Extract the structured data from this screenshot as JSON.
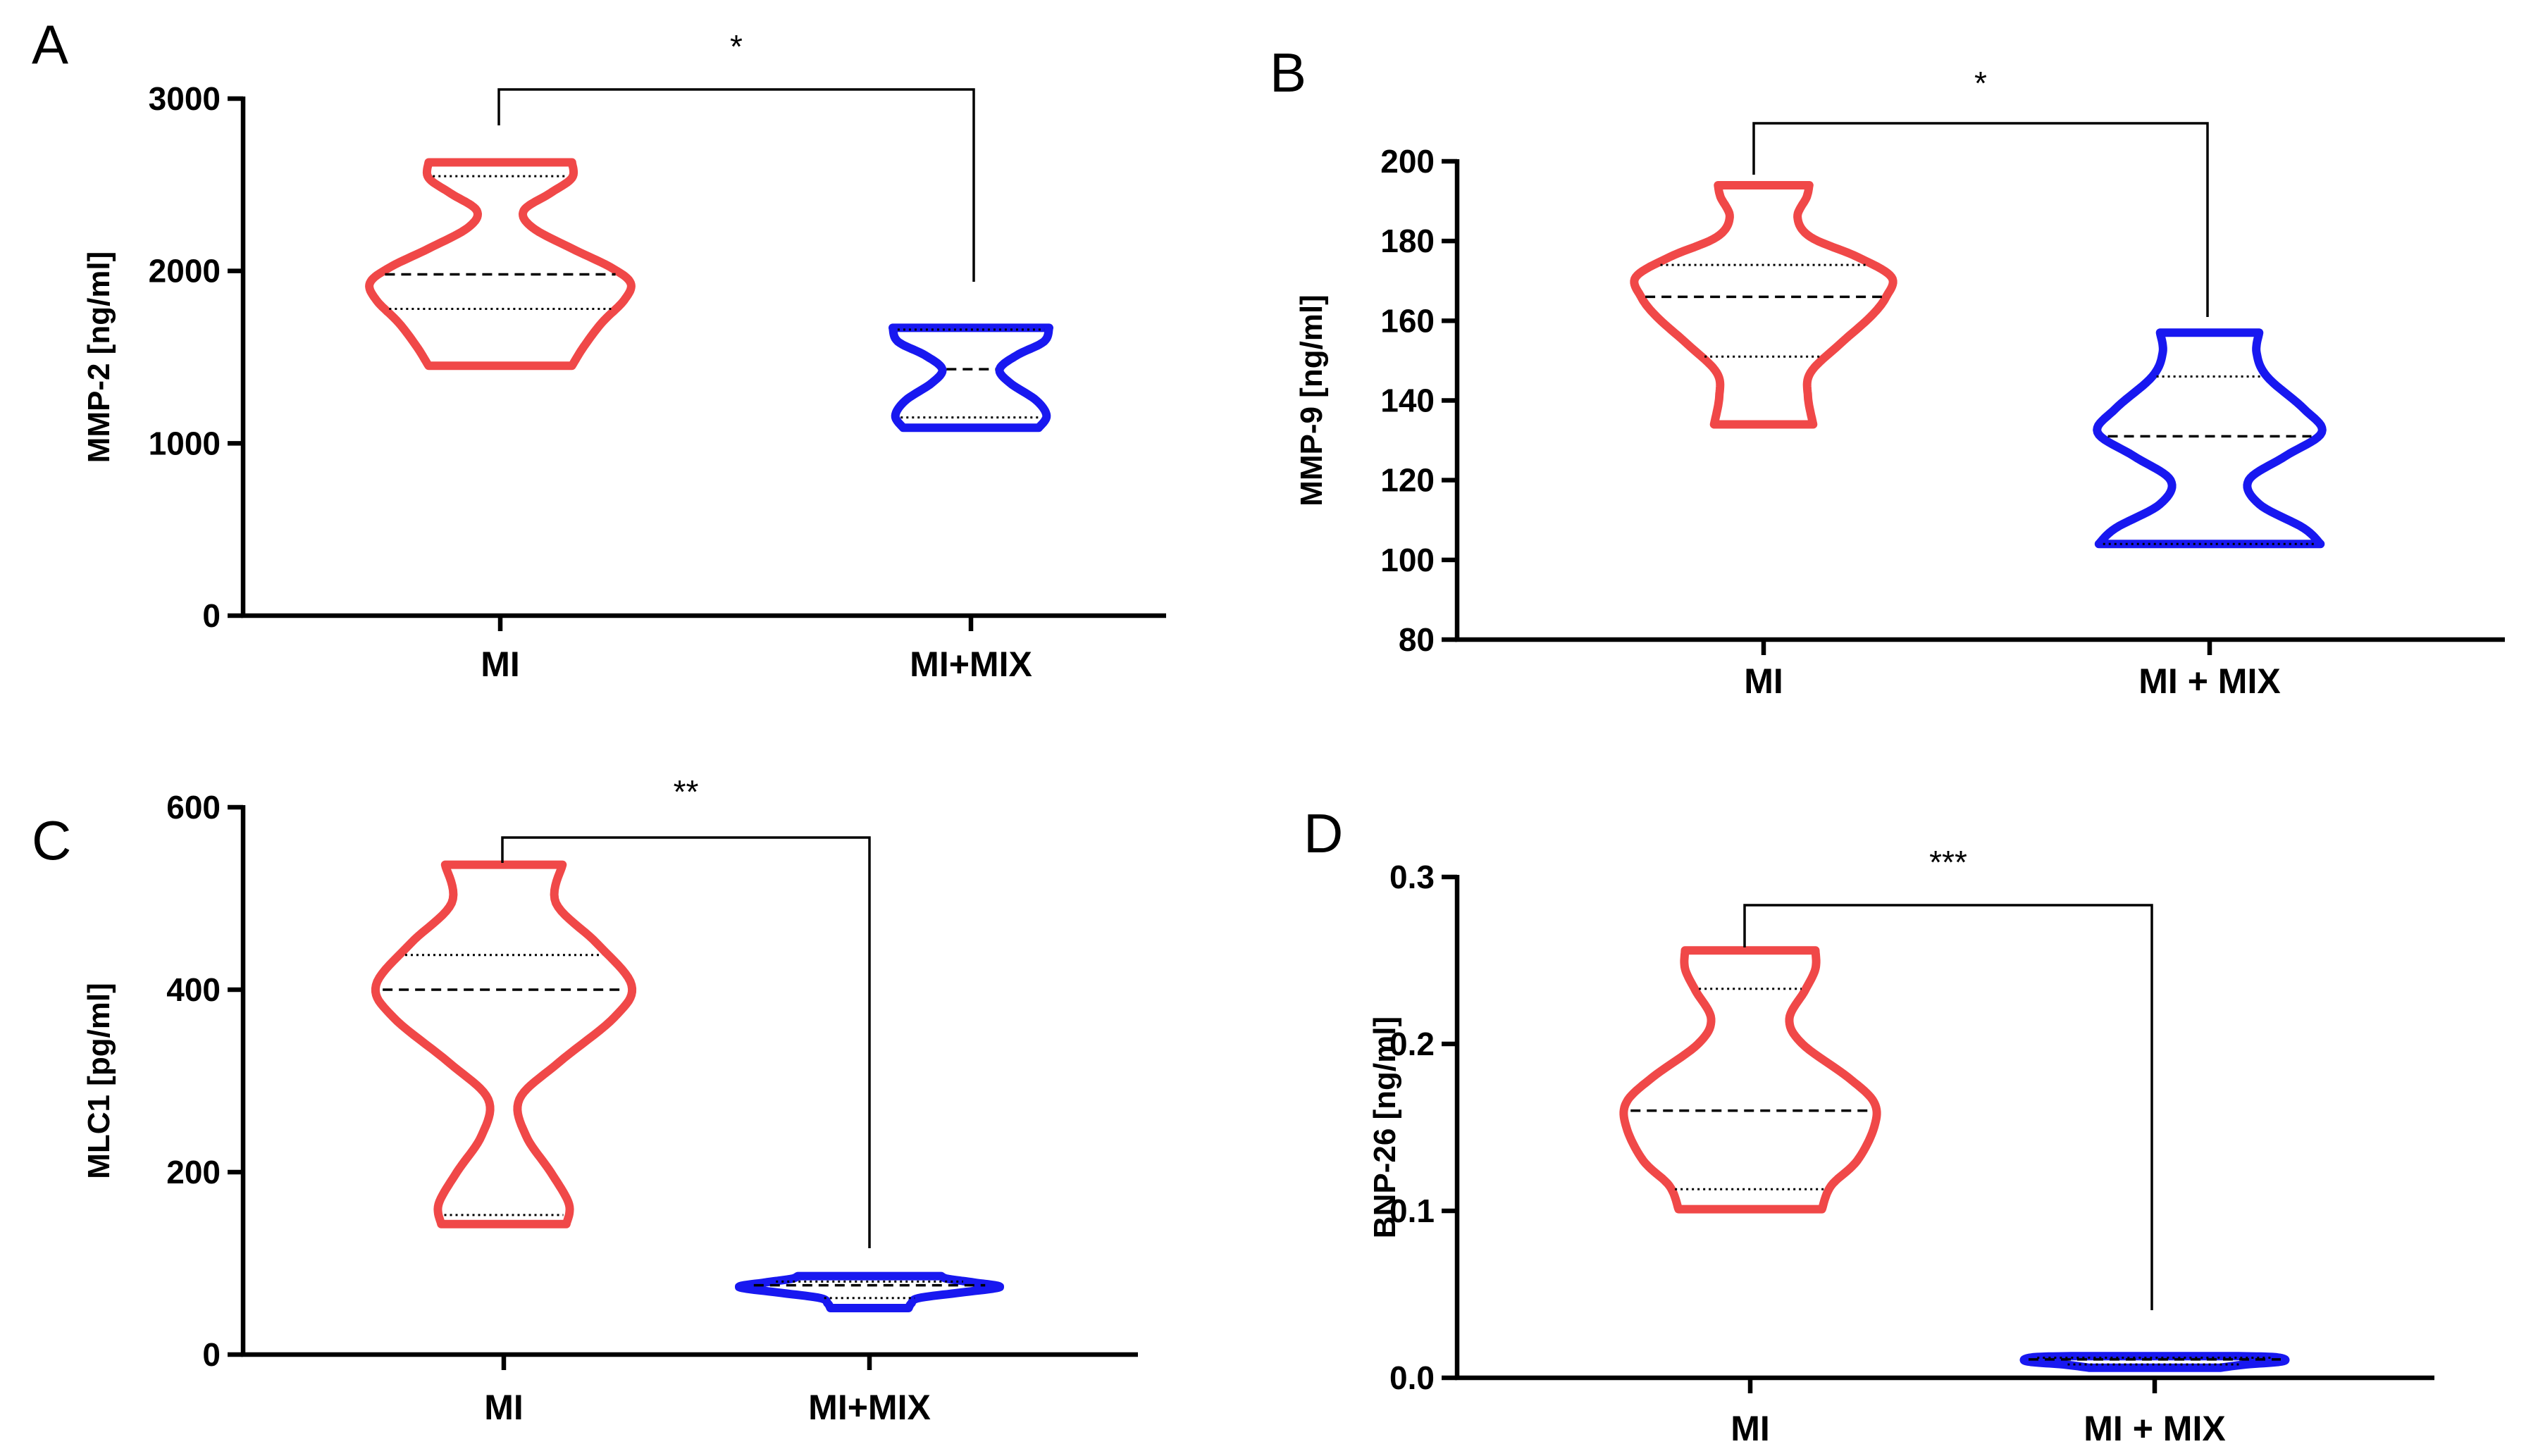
{
  "chart_data": [
    {
      "panel": "A",
      "type": "violin",
      "title": "",
      "xlabel": "",
      "ylabel": "MMP-2 [ng/ml]",
      "ylim": [
        0,
        3000
      ],
      "yticks": [
        0,
        1000,
        2000,
        3000
      ],
      "ytick_labels": [
        "0",
        "1000",
        "2000",
        "3000"
      ],
      "categories": [
        "MI",
        "MI+MIX"
      ],
      "series": [
        {
          "name": "MI",
          "color": "#F04848",
          "min": 1450,
          "max": 2630,
          "median": 1980,
          "q1": 1780,
          "q3": 2550,
          "profile": [
            [
              1450,
              0.55
            ],
            [
              1560,
              0.64
            ],
            [
              1700,
              0.78
            ],
            [
              1830,
              0.95
            ],
            [
              1930,
              1.0
            ],
            [
              2020,
              0.85
            ],
            [
              2130,
              0.55
            ],
            [
              2250,
              0.25
            ],
            [
              2350,
              0.18
            ],
            [
              2450,
              0.38
            ],
            [
              2540,
              0.55
            ],
            [
              2630,
              0.55
            ]
          ]
        },
        {
          "name": "MI+MIX",
          "color": "#1818F0",
          "min": 1090,
          "max": 1670,
          "median": 1430,
          "q1": 1150,
          "q3": 1660,
          "profile": [
            [
              1090,
              0.52
            ],
            [
              1160,
              0.58
            ],
            [
              1250,
              0.5
            ],
            [
              1350,
              0.3
            ],
            [
              1430,
              0.22
            ],
            [
              1510,
              0.35
            ],
            [
              1590,
              0.56
            ],
            [
              1670,
              0.6
            ]
          ]
        }
      ],
      "significance": "*"
    },
    {
      "panel": "B",
      "type": "violin",
      "title": "",
      "xlabel": "",
      "ylabel": "MMP-9 [ng/ml]",
      "ylim": [
        80,
        200
      ],
      "yticks": [
        80,
        100,
        120,
        140,
        160,
        180,
        200
      ],
      "ytick_labels": [
        "80",
        "100",
        "120",
        "140",
        "160",
        "180",
        "200"
      ],
      "categories": [
        "MI",
        "MI + MIX"
      ],
      "series": [
        {
          "name": "MI",
          "color": "#F04848",
          "min": 134,
          "max": 194,
          "median": 166,
          "q1": 151,
          "q3": 174,
          "profile": [
            [
              134,
              0.38
            ],
            [
              141,
              0.34
            ],
            [
              147,
              0.36
            ],
            [
              154,
              0.58
            ],
            [
              161,
              0.82
            ],
            [
              166,
              0.94
            ],
            [
              171,
              0.98
            ],
            [
              176,
              0.72
            ],
            [
              181,
              0.36
            ],
            [
              186,
              0.26
            ],
            [
              191,
              0.33
            ],
            [
              194,
              0.35
            ]
          ]
        },
        {
          "name": "MI + MIX",
          "color": "#1818F0",
          "min": 104,
          "max": 157,
          "median": 131,
          "q1": 104,
          "q3": 146,
          "profile": [
            [
              104,
              0.85
            ],
            [
              108,
              0.72
            ],
            [
              114,
              0.38
            ],
            [
              120,
              0.3
            ],
            [
              126,
              0.58
            ],
            [
              132,
              0.86
            ],
            [
              138,
              0.72
            ],
            [
              146,
              0.44
            ],
            [
              152,
              0.36
            ],
            [
              157,
              0.38
            ]
          ]
        }
      ],
      "significance": "*"
    },
    {
      "panel": "C",
      "type": "violin",
      "title": "",
      "xlabel": "",
      "ylabel": "MLC1 [pg/ml]",
      "ylim": [
        0,
        600
      ],
      "yticks": [
        0,
        200,
        400,
        600
      ],
      "ytick_labels": [
        "0",
        "200",
        "400",
        "600"
      ],
      "categories": [
        "MI",
        "MI+MIX"
      ],
      "series": [
        {
          "name": "MI",
          "color": "#F04848",
          "min": 143,
          "max": 537,
          "median": 400,
          "q1": 153,
          "q3": 438,
          "profile": [
            [
              143,
              0.48
            ],
            [
              165,
              0.5
            ],
            [
              200,
              0.36
            ],
            [
              240,
              0.17
            ],
            [
              280,
              0.12
            ],
            [
              320,
              0.42
            ],
            [
              370,
              0.85
            ],
            [
              405,
              0.98
            ],
            [
              450,
              0.72
            ],
            [
              495,
              0.4
            ],
            [
              537,
              0.45
            ]
          ]
        },
        {
          "name": "MI+MIX",
          "color": "#1818F0",
          "min": 51,
          "max": 86,
          "median": 76,
          "q1": 62,
          "q3": 80,
          "profile": [
            [
              51,
              0.3
            ],
            [
              56,
              0.32
            ],
            [
              62,
              0.38
            ],
            [
              68,
              0.7
            ],
            [
              74,
              1.0
            ],
            [
              79,
              0.8
            ],
            [
              83,
              0.6
            ],
            [
              86,
              0.55
            ]
          ]
        }
      ],
      "significance": "**"
    },
    {
      "panel": "D",
      "type": "violin",
      "title": "",
      "xlabel": "",
      "ylabel": "BNP-26 [ng/ml]",
      "ylim": [
        0,
        0.3
      ],
      "yticks": [
        0,
        0.1,
        0.2,
        0.3
      ],
      "ytick_labels": [
        "0.0",
        "0.1",
        "0.2",
        "0.3"
      ],
      "categories": [
        "MI",
        "MI + MIX"
      ],
      "series": [
        {
          "name": "MI",
          "color": "#F04848",
          "min": 0.101,
          "max": 0.256,
          "median": 0.16,
          "q1": 0.113,
          "q3": 0.233,
          "profile": [
            [
              0.101,
              0.55
            ],
            [
              0.115,
              0.62
            ],
            [
              0.13,
              0.82
            ],
            [
              0.15,
              0.95
            ],
            [
              0.165,
              0.95
            ],
            [
              0.18,
              0.75
            ],
            [
              0.2,
              0.4
            ],
            [
              0.215,
              0.3
            ],
            [
              0.232,
              0.42
            ],
            [
              0.245,
              0.5
            ],
            [
              0.256,
              0.5
            ]
          ]
        },
        {
          "name": "MI + MIX",
          "color": "#1818F0",
          "min": 0.006,
          "max": 0.013,
          "median": 0.011,
          "q1": 0.008,
          "q3": 0.012,
          "profile": [
            [
              0.006,
              0.5
            ],
            [
              0.008,
              0.7
            ],
            [
              0.0095,
              0.95
            ],
            [
              0.011,
              1.0
            ],
            [
              0.0125,
              0.9
            ],
            [
              0.013,
              0.6
            ]
          ]
        }
      ],
      "significance": "***"
    }
  ]
}
